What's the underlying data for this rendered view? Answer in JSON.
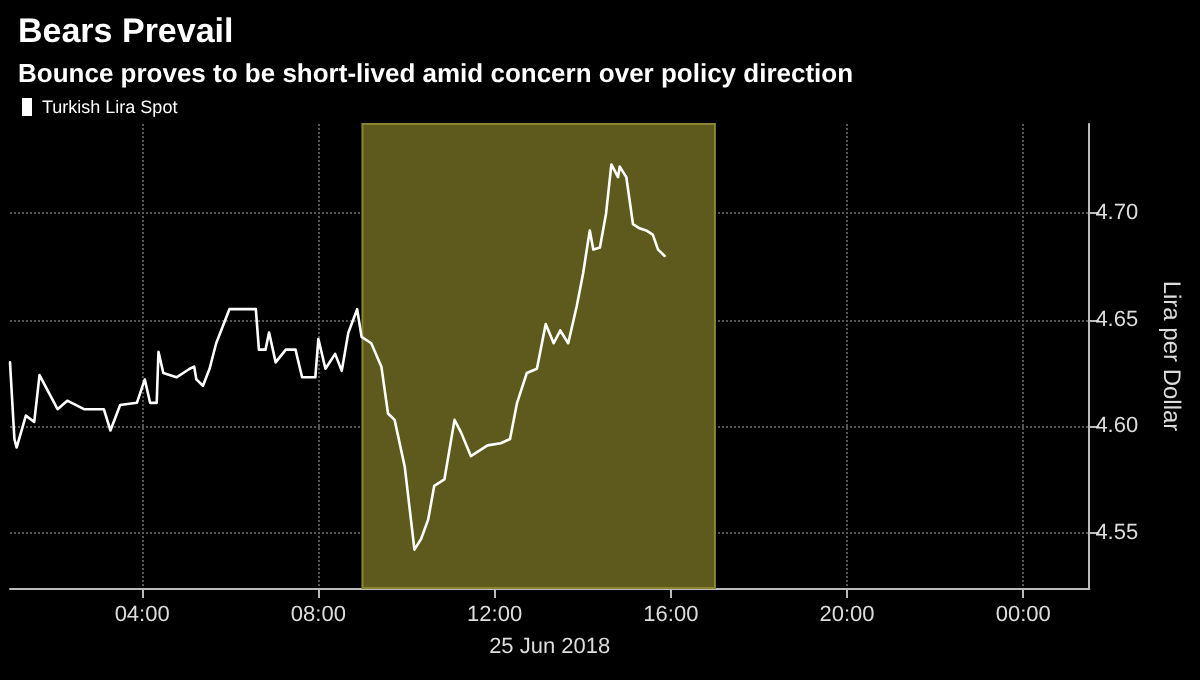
{
  "chart_data": {
    "type": "line",
    "title": "Bears Prevail",
    "subtitle": "Bounce proves to be short-lived amid concern over policy direction",
    "xlabel": "25 Jun 2018",
    "ylabel": "Lira per Dollar",
    "series": [
      {
        "name": "Turkish Lira Spot",
        "color": "#ffffff",
        "x": [
          1.0,
          1.1,
          1.15,
          1.36,
          1.55,
          1.67,
          1.85,
          2.08,
          2.3,
          2.68,
          3.13,
          3.28,
          3.5,
          3.88,
          4.06,
          4.18,
          4.33,
          4.37,
          4.48,
          4.78,
          5.08,
          5.18,
          5.23,
          5.38,
          5.53,
          5.68,
          5.98,
          6.28,
          6.58,
          6.65,
          6.8,
          6.88,
          7.03,
          7.26,
          7.48,
          7.63,
          7.93,
          8.0,
          8.16,
          8.38,
          8.53,
          8.68,
          8.88,
          8.98,
          9.2,
          9.43,
          9.58,
          9.73,
          9.96,
          10.18,
          10.33,
          10.49,
          10.63,
          10.86,
          11.09,
          11.24,
          11.46,
          11.84,
          12.14,
          12.35,
          12.51,
          12.73,
          12.96,
          13.16,
          13.34,
          13.49,
          13.67,
          13.86,
          14.01,
          14.16,
          14.24,
          14.39,
          14.53,
          14.65,
          14.8,
          14.84,
          14.99,
          15.14,
          15.29,
          15.44,
          15.59,
          15.71,
          15.86
        ],
        "values": [
          4.63,
          4.594,
          4.59,
          4.605,
          4.602,
          4.624,
          4.617,
          4.608,
          4.612,
          4.608,
          4.608,
          4.598,
          4.61,
          4.611,
          4.622,
          4.611,
          4.611,
          4.635,
          4.625,
          4.623,
          4.627,
          4.628,
          4.622,
          4.619,
          4.627,
          4.639,
          4.655,
          4.655,
          4.655,
          4.636,
          4.636,
          4.644,
          4.63,
          4.636,
          4.636,
          4.623,
          4.623,
          4.641,
          4.627,
          4.634,
          4.626,
          4.644,
          4.655,
          4.642,
          4.639,
          4.628,
          4.606,
          4.603,
          4.581,
          4.542,
          4.547,
          4.556,
          4.572,
          4.575,
          4.603,
          4.597,
          4.586,
          4.591,
          4.592,
          4.594,
          4.611,
          4.625,
          4.627,
          4.648,
          4.639,
          4.645,
          4.639,
          4.656,
          4.672,
          4.692,
          4.683,
          4.684,
          4.7,
          4.723,
          4.717,
          4.722,
          4.717,
          4.695,
          4.693,
          4.692,
          4.69,
          4.683,
          4.68
        ]
      }
    ],
    "xlim": [
      1,
      25.5
    ],
    "xticks": [
      {
        "value": 4,
        "label": "04:00"
      },
      {
        "value": 8,
        "label": "08:00"
      },
      {
        "value": 12,
        "label": "12:00"
      },
      {
        "value": 16,
        "label": "16:00"
      },
      {
        "value": 20,
        "label": "20:00"
      },
      {
        "value": 24,
        "label": "00:00"
      }
    ],
    "ylim": [
      4.524,
      4.742
    ],
    "yticks": [
      {
        "value": 4.55,
        "label": "4.55"
      },
      {
        "value": 4.6,
        "label": "4.60"
      },
      {
        "value": 4.65,
        "label": "4.65"
      },
      {
        "value": 4.7,
        "label": "4.70"
      }
    ],
    "bands": [
      {
        "axis": "x",
        "from": 9,
        "to": 17,
        "color": "#5e5a1d"
      }
    ],
    "grid": true,
    "legend": "top left",
    "marker": "none",
    "line_style": "solid"
  }
}
